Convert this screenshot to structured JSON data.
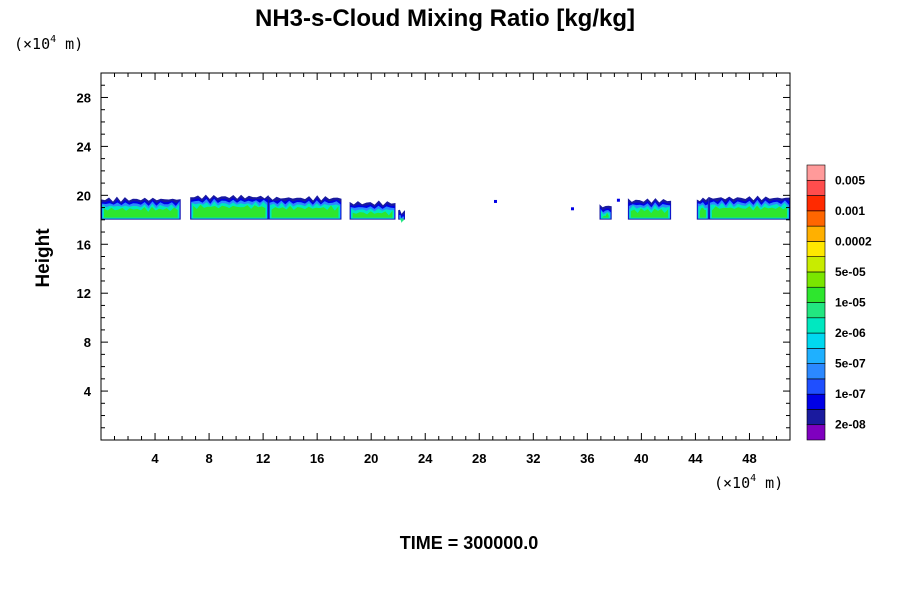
{
  "chart_data": {
    "type": "heatmap",
    "title": "NH3-s-Cloud Mixing Ratio [kg/kg]",
    "xlabel": "",
    "ylabel": "Height",
    "x_unit": {
      "base": "(×10",
      "exp": "4",
      "rest": " m)"
    },
    "y_unit": {
      "base": "(×10",
      "exp": "4",
      "rest": " m)"
    },
    "xlim": [
      0,
      51
    ],
    "ylim": [
      0,
      30
    ],
    "x_ticks": [
      4,
      8,
      12,
      16,
      20,
      24,
      28,
      32,
      36,
      40,
      44,
      48
    ],
    "y_ticks": [
      4,
      8,
      12,
      16,
      20,
      24,
      28
    ],
    "time_label": "TIME = 300000.0",
    "colorbar": {
      "colors": [
        "#7f00bf",
        "#1a1a9e",
        "#0000e6",
        "#1f4fff",
        "#2b88ff",
        "#1fb0ff",
        "#00d8f0",
        "#00e8c0",
        "#22e680",
        "#2ee62e",
        "#7ae600",
        "#c8ec00",
        "#ffe800",
        "#ffb000",
        "#ff6600",
        "#ff2a00",
        "#ff4d4d",
        "#ff9a9a"
      ],
      "labels": [
        "2e-08",
        "1e-07",
        "5e-07",
        "2e-06",
        "1e-05",
        "5e-05",
        "0.0002",
        "0.001",
        "0.005"
      ]
    },
    "cloud_layer": {
      "description": "thin cloud band near 18-19.7 x10^4 m height",
      "segments": [
        {
          "x0": 0.0,
          "x1": 5.9,
          "top": 19.6,
          "core": true
        },
        {
          "x0": 6.6,
          "x1": 12.4,
          "top": 19.8,
          "core": true
        },
        {
          "x0": 12.4,
          "x1": 17.8,
          "top": 19.7,
          "core": true
        },
        {
          "x0": 18.4,
          "x1": 21.8,
          "top": 19.3,
          "core": true
        },
        {
          "x0": 22.0,
          "x1": 22.5,
          "top": 18.6,
          "core": false
        },
        {
          "x0": 36.9,
          "x1": 37.8,
          "top": 19.1,
          "core": true
        },
        {
          "x0": 39.0,
          "x1": 42.2,
          "top": 19.5,
          "core": true
        },
        {
          "x0": 44.1,
          "x1": 45.0,
          "top": 19.6,
          "core": true
        },
        {
          "x0": 45.0,
          "x1": 51.0,
          "top": 19.7,
          "core": true
        }
      ],
      "specks": [
        {
          "x": 29.2,
          "y": 19.5
        },
        {
          "x": 34.9,
          "y": 18.9
        },
        {
          "x": 38.3,
          "y": 19.6
        }
      ]
    }
  }
}
